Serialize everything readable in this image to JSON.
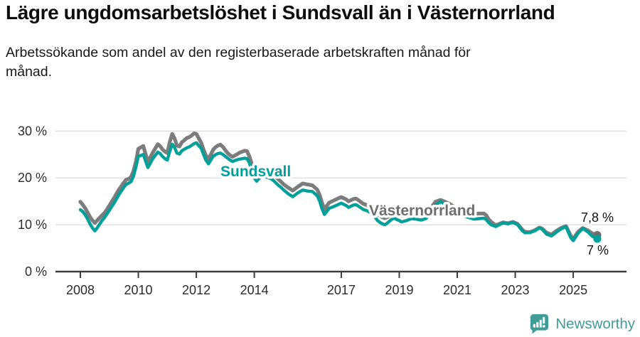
{
  "header": {
    "title": "Lägre ungdomsarbetslöshet i Sundsvall än i Västernorrland",
    "subtitle": "Arbetssökande som andel av den registerbaserade arbetskraften månad för månad."
  },
  "footer": {
    "brand": "Newsworthy",
    "brand_color": "#3f9c97"
  },
  "chart_data": {
    "type": "line",
    "title": "Lägre ungdomsarbetslöshet i Sundsvall än i Västernorrland",
    "subtitle": "Arbetssökande som andel av den registerbaserade arbetskraften månad för månad.",
    "grid": "on",
    "legend": "inline-labels",
    "axis_color": "#3d3d3d",
    "grid_color": "#d8d8d8",
    "ylim": [
      0,
      32
    ],
    "xlim": [
      2007.1,
      2026.2
    ],
    "y_unit": "%",
    "y_ticks": [
      {
        "value": 0,
        "label": "0 %"
      },
      {
        "value": 10,
        "label": "10 %"
      },
      {
        "value": 20,
        "label": "20 %"
      },
      {
        "value": 30,
        "label": "30 %"
      }
    ],
    "x_ticks": [
      {
        "value": 2008,
        "label": "2008"
      },
      {
        "value": 2010,
        "label": "2010"
      },
      {
        "value": 2012,
        "label": "2012"
      },
      {
        "value": 2014,
        "label": "2014"
      },
      {
        "value": 2017,
        "label": "2017"
      },
      {
        "value": 2019,
        "label": "2019"
      },
      {
        "value": 2021,
        "label": "2021"
      },
      {
        "value": 2023,
        "label": "2023"
      },
      {
        "value": 2025,
        "label": "2025"
      }
    ],
    "x_min": 2008,
    "x": [
      2008.0,
      2008.08,
      2008.17,
      2008.25,
      2008.33,
      2008.42,
      2008.5,
      2008.58,
      2008.67,
      2008.75,
      2008.83,
      2008.92,
      2009.0,
      2009.17,
      2009.33,
      2009.5,
      2009.58,
      2009.67,
      2009.75,
      2009.83,
      2009.92,
      2010.0,
      2010.17,
      2010.33,
      2010.5,
      2010.67,
      2010.75,
      2010.83,
      2010.92,
      2011.0,
      2011.08,
      2011.17,
      2011.25,
      2011.33,
      2011.42,
      2011.5,
      2011.58,
      2011.67,
      2011.75,
      2011.83,
      2011.92,
      2012.0,
      2012.08,
      2012.17,
      2012.25,
      2012.33,
      2012.42,
      2012.5,
      2012.58,
      2012.67,
      2012.75,
      2012.83,
      2012.92,
      2013.0,
      2013.08,
      2013.17,
      2013.25,
      2013.33,
      2013.42,
      2013.5,
      2013.58,
      2013.67,
      2013.75,
      2013.83,
      2013.92,
      2014.0,
      2014.08,
      2014.17,
      2014.25,
      2014.33,
      2014.42,
      2014.5,
      2014.58,
      2014.67,
      2014.75,
      2014.83,
      2014.92,
      2015.0,
      2015.17,
      2015.33,
      2015.5,
      2015.67,
      2015.83,
      2016.0,
      2016.17,
      2016.25,
      2016.33,
      2016.42,
      2016.5,
      2016.58,
      2016.75,
      2016.92,
      2017.0,
      2017.17,
      2017.25,
      2017.42,
      2017.5,
      2017.58,
      2017.75,
      2017.92,
      2018.08,
      2018.17,
      2018.25,
      2018.33,
      2018.42,
      2018.5,
      2018.58,
      2018.67,
      2018.75,
      2018.83,
      2018.92,
      2019.0,
      2019.08,
      2019.25,
      2019.42,
      2019.58,
      2019.75,
      2019.92,
      2020.08,
      2020.25,
      2020.42,
      2020.58,
      2020.75,
      2020.92,
      2021.08,
      2021.25,
      2021.42,
      2021.58,
      2021.75,
      2021.92,
      2022.0,
      2022.08,
      2022.17,
      2022.33,
      2022.42,
      2022.58,
      2022.75,
      2022.92,
      2023.08,
      2023.25,
      2023.33,
      2023.5,
      2023.67,
      2023.83,
      2023.92,
      2024.08,
      2024.25,
      2024.42,
      2024.58,
      2024.75,
      2024.83,
      2024.92,
      2025.0,
      2025.17,
      2025.33,
      2025.5,
      2025.67,
      2025.83
    ],
    "series": [
      {
        "name": "Sundsvall",
        "color": "#00a09a",
        "label_color": "#00a09a",
        "end_label": "7 %",
        "end_value": 7.0,
        "values": [
          13.2,
          12.8,
          12.1,
          11.2,
          10.2,
          9.3,
          8.7,
          9.3,
          10.2,
          10.9,
          11.5,
          12.3,
          13.1,
          14.7,
          16.4,
          18.0,
          18.6,
          18.9,
          19.2,
          20.3,
          22.4,
          24.6,
          25.0,
          22.2,
          24.1,
          25.5,
          25.2,
          24.6,
          24.1,
          23.8,
          25.6,
          27.2,
          26.5,
          25.3,
          25.1,
          25.8,
          26.1,
          26.4,
          26.6,
          26.9,
          27.3,
          27.5,
          26.9,
          26.3,
          25.0,
          23.8,
          23.0,
          23.8,
          24.6,
          25.0,
          25.2,
          25.3,
          25.0,
          24.6,
          24.2,
          23.8,
          23.5,
          23.7,
          23.9,
          24.0,
          24.1,
          24.2,
          24.1,
          23.2,
          21.5,
          20.0,
          19.3,
          19.9,
          20.5,
          20.3,
          20.2,
          20.0,
          19.8,
          19.4,
          18.9,
          18.4,
          18.0,
          17.5,
          16.6,
          16.0,
          16.8,
          17.4,
          17.2,
          17.1,
          16.2,
          15.1,
          13.5,
          12.2,
          12.8,
          13.5,
          13.9,
          14.4,
          14.6,
          14.1,
          13.7,
          14.2,
          14.3,
          14.0,
          13.3,
          12.9,
          12.3,
          11.6,
          10.9,
          10.5,
          10.2,
          10.0,
          10.3,
          10.8,
          11.2,
          11.4,
          11.1,
          10.9,
          10.6,
          10.9,
          11.3,
          11.2,
          11.0,
          11.3,
          12.6,
          14.2,
          14.9,
          14.4,
          13.6,
          12.8,
          12.3,
          11.8,
          11.5,
          11.2,
          11.3,
          11.4,
          11.1,
          10.5,
          10.0,
          9.6,
          9.9,
          10.4,
          10.2,
          10.5,
          10.0,
          8.7,
          8.3,
          8.3,
          8.7,
          9.3,
          9.1,
          8.0,
          7.6,
          8.4,
          9.1,
          9.6,
          8.4,
          7.2,
          6.6,
          8.2,
          9.2,
          8.5,
          7.5,
          7.0
        ]
      },
      {
        "name": "Västernorrland",
        "color": "#7c7c7c",
        "label_color": "#6e6e6e",
        "end_label": "7,8 %",
        "end_value": 7.8,
        "values": [
          14.9,
          14.3,
          13.5,
          12.6,
          11.7,
          10.9,
          10.4,
          10.9,
          11.5,
          12.0,
          12.5,
          13.3,
          14.1,
          15.8,
          17.5,
          19.0,
          19.6,
          19.8,
          20.2,
          21.4,
          23.6,
          26.2,
          26.8,
          23.4,
          25.4,
          27.2,
          26.8,
          26.1,
          25.6,
          25.3,
          27.6,
          29.4,
          28.4,
          26.9,
          26.7,
          27.6,
          28.0,
          28.5,
          28.7,
          29.0,
          29.5,
          29.4,
          28.5,
          27.5,
          26.0,
          24.8,
          24.0,
          25.0,
          26.0,
          26.6,
          26.9,
          27.1,
          26.6,
          25.9,
          25.3,
          24.8,
          24.5,
          24.8,
          25.1,
          25.4,
          25.6,
          25.8,
          25.7,
          24.6,
          22.8,
          21.3,
          20.6,
          21.1,
          21.6,
          21.5,
          21.4,
          21.2,
          21.0,
          20.7,
          20.2,
          19.7,
          19.2,
          18.7,
          17.9,
          17.3,
          18.1,
          18.8,
          18.6,
          18.4,
          17.5,
          16.4,
          14.8,
          13.3,
          14.0,
          14.7,
          15.2,
          15.7,
          15.9,
          15.4,
          15.0,
          15.5,
          15.6,
          15.3,
          14.5,
          14.1,
          13.6,
          12.9,
          12.2,
          11.9,
          11.6,
          11.4,
          11.6,
          12.0,
          12.4,
          12.6,
          12.4,
          12.2,
          11.9,
          12.2,
          12.6,
          12.4,
          12.2,
          12.5,
          13.5,
          14.9,
          15.3,
          14.9,
          14.4,
          13.7,
          13.2,
          12.8,
          12.5,
          12.3,
          12.4,
          12.4,
          12.0,
          11.2,
          10.6,
          9.9,
          10.1,
          10.5,
          10.3,
          10.6,
          10.2,
          8.9,
          8.5,
          8.4,
          8.8,
          9.4,
          9.2,
          8.3,
          7.9,
          8.7,
          9.3,
          9.7,
          8.7,
          7.6,
          7.0,
          8.5,
          9.3,
          8.8,
          8.1,
          7.8
        ]
      }
    ]
  }
}
